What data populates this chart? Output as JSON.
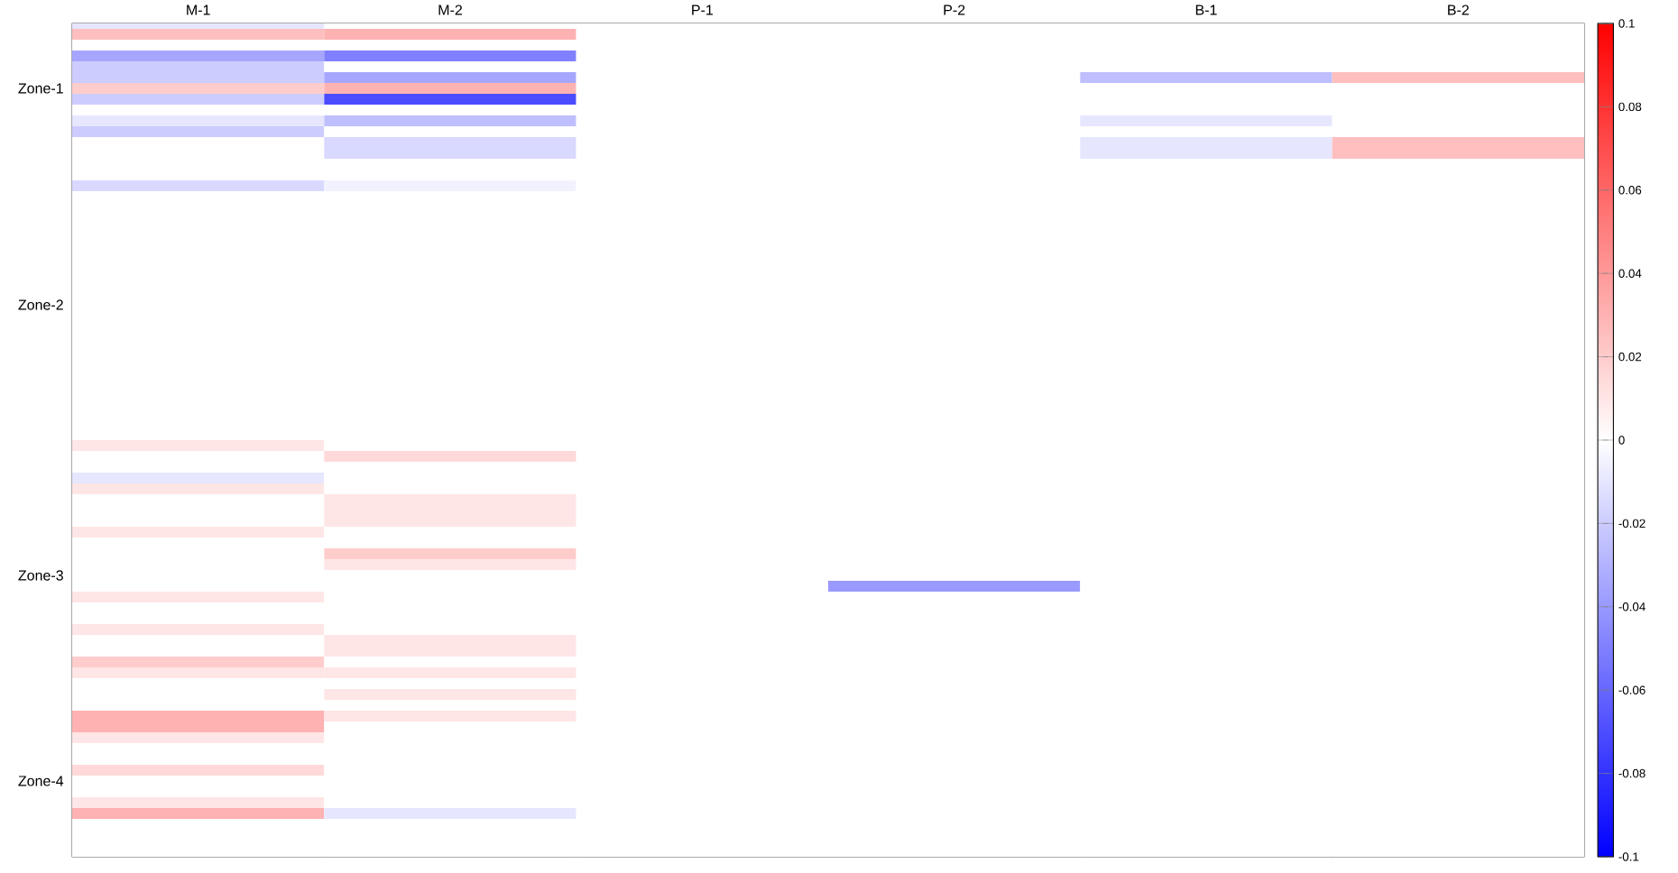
{
  "chart_data": {
    "type": "heatmap",
    "categories": [
      "M-1",
      "M-2",
      "P-1",
      "P-2",
      "B-1",
      "B-2"
    ],
    "y_categories": [
      null,
      null,
      null,
      null,
      null,
      null,
      "Zone-1",
      null,
      null,
      null,
      null,
      null,
      null,
      null,
      null,
      null,
      null,
      null,
      null,
      null,
      null,
      null,
      null,
      null,
      null,
      null,
      "Zone-2",
      null,
      null,
      null,
      null,
      null,
      null,
      null,
      null,
      null,
      null,
      null,
      null,
      null,
      null,
      null,
      null,
      null,
      null,
      null,
      null,
      null,
      null,
      null,
      null,
      "Zone-3",
      null,
      null,
      null,
      null,
      null,
      null,
      null,
      null,
      null,
      null,
      null,
      null,
      null,
      null,
      null,
      null,
      null,
      null,
      "Zone-4",
      null,
      null,
      null,
      null,
      null,
      null,
      null
    ],
    "cells": [
      [
        -0.01,
        0,
        0,
        0,
        0,
        0
      ],
      [
        0.025,
        0.03,
        0,
        0,
        0,
        0
      ],
      [
        0,
        0,
        0,
        0,
        0,
        0
      ],
      [
        -0.035,
        -0.05,
        0,
        0,
        0,
        0
      ],
      [
        -0.02,
        0,
        0,
        0,
        0,
        0
      ],
      [
        -0.02,
        -0.035,
        0,
        0,
        -0.025,
        0.025
      ],
      [
        0.02,
        0.03,
        0,
        0,
        0,
        0
      ],
      [
        -0.02,
        -0.07,
        0,
        0,
        0,
        0
      ],
      [
        0,
        0,
        0,
        0,
        0,
        0
      ],
      [
        -0.01,
        -0.025,
        0,
        0,
        -0.01,
        0
      ],
      [
        -0.02,
        0,
        0,
        0,
        0,
        0
      ],
      [
        0,
        -0.015,
        0,
        0,
        -0.01,
        0.025
      ],
      [
        0,
        -0.015,
        0,
        0,
        -0.01,
        0.025
      ],
      [
        0,
        0,
        0,
        0,
        0,
        0
      ],
      [
        0,
        0,
        0,
        0,
        0,
        0
      ],
      [
        -0.015,
        -0.005,
        0,
        0,
        0,
        0
      ],
      [
        0,
        0,
        0,
        0,
        0,
        0
      ],
      [
        0,
        0,
        0,
        0,
        0,
        0
      ],
      [
        0,
        0,
        0,
        0,
        0,
        0
      ],
      [
        0,
        0,
        0,
        0,
        0,
        0
      ],
      [
        0,
        0,
        0,
        0,
        0,
        0
      ],
      [
        0,
        0,
        0,
        0,
        0,
        0
      ],
      [
        0,
        0,
        0,
        0,
        0,
        0
      ],
      [
        0,
        0,
        0,
        0,
        0,
        0
      ],
      [
        0,
        0,
        0,
        0,
        0,
        0
      ],
      [
        0,
        0,
        0,
        0,
        0,
        0
      ],
      [
        0,
        0,
        0,
        0,
        0,
        0
      ],
      [
        0,
        0,
        0,
        0,
        0,
        0
      ],
      [
        0,
        0,
        0,
        0,
        0,
        0
      ],
      [
        0,
        0,
        0,
        0,
        0,
        0
      ],
      [
        0,
        0,
        0,
        0,
        0,
        0
      ],
      [
        0,
        0,
        0,
        0,
        0,
        0
      ],
      [
        0,
        0,
        0,
        0,
        0,
        0
      ],
      [
        0,
        0,
        0,
        0,
        0,
        0
      ],
      [
        0,
        0,
        0,
        0,
        0,
        0
      ],
      [
        0,
        0,
        0,
        0,
        0,
        0
      ],
      [
        0,
        0,
        0,
        0,
        0,
        0
      ],
      [
        0,
        0,
        0,
        0,
        0,
        0
      ],
      [
        0,
        0,
        0,
        0,
        0,
        0
      ],
      [
        0.01,
        0,
        0,
        0,
        0,
        0
      ],
      [
        0,
        0.015,
        0,
        0,
        0,
        0
      ],
      [
        0,
        0,
        0,
        0,
        0,
        0
      ],
      [
        -0.01,
        0,
        0,
        0,
        0,
        0
      ],
      [
        0.01,
        0,
        0,
        0,
        0,
        0
      ],
      [
        0,
        0.01,
        0,
        0,
        0,
        0
      ],
      [
        0,
        0.01,
        0,
        0,
        0,
        0
      ],
      [
        0,
        0.01,
        0,
        0,
        0,
        0
      ],
      [
        0.01,
        0,
        0,
        0,
        0,
        0
      ],
      [
        0,
        0,
        0,
        0,
        0,
        0
      ],
      [
        0,
        0.02,
        0,
        0,
        0,
        0
      ],
      [
        0,
        0.01,
        0,
        0,
        0,
        0
      ],
      [
        0,
        0,
        0,
        0,
        0,
        0
      ],
      [
        0,
        0,
        0,
        -0.04,
        0,
        0
      ],
      [
        0.01,
        0,
        0,
        0,
        0,
        0
      ],
      [
        0,
        0,
        0,
        0,
        0,
        0
      ],
      [
        0,
        0,
        0,
        0,
        0,
        0
      ],
      [
        0.01,
        0,
        0,
        0,
        0,
        0
      ],
      [
        0,
        0.01,
        0,
        0,
        0,
        0
      ],
      [
        0,
        0.01,
        0,
        0,
        0,
        0
      ],
      [
        0.02,
        0,
        0,
        0,
        0,
        0
      ],
      [
        0.01,
        0.01,
        0,
        0,
        0,
        0
      ],
      [
        0,
        0,
        0,
        0,
        0,
        0
      ],
      [
        0,
        0.01,
        0,
        0,
        0,
        0
      ],
      [
        0,
        0,
        0,
        0,
        0,
        0
      ],
      [
        0.03,
        0.01,
        0,
        0,
        0,
        0
      ],
      [
        0.03,
        0,
        0,
        0,
        0,
        0
      ],
      [
        0.01,
        0,
        0,
        0,
        0,
        0
      ],
      [
        0,
        0,
        0,
        0,
        0,
        0
      ],
      [
        0,
        0,
        0,
        0,
        0,
        0
      ],
      [
        0.015,
        0,
        0,
        0,
        0,
        0
      ],
      [
        0,
        0,
        0,
        0,
        0,
        0
      ],
      [
        0,
        0,
        0,
        0,
        0,
        0
      ],
      [
        0.01,
        0,
        0,
        0,
        0,
        0
      ],
      [
        0.03,
        -0.01,
        0,
        0,
        0,
        0
      ],
      [
        0,
        0,
        0,
        0,
        0,
        0
      ],
      [
        0,
        0,
        0,
        0,
        0,
        0
      ],
      [
        0,
        0,
        0,
        0,
        0,
        0
      ],
      [
        0,
        0,
        0,
        0,
        0,
        0
      ]
    ],
    "clim": [
      -0.1,
      0.1
    ],
    "cticks": [
      -0.1,
      -0.08,
      -0.06,
      -0.04,
      -0.02,
      0,
      0.02,
      0.04,
      0.06,
      0.08,
      0.1
    ]
  }
}
